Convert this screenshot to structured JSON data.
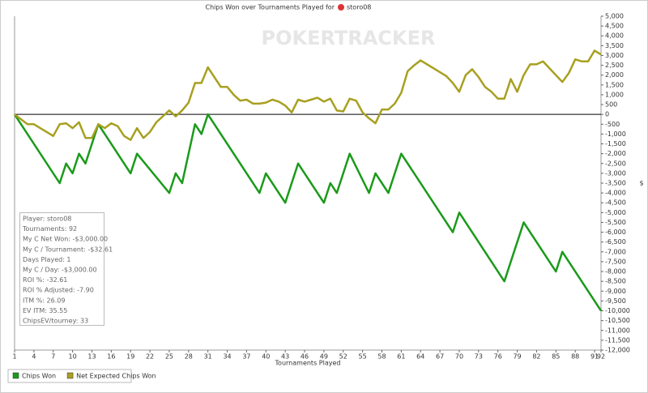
{
  "chart_data": {
    "type": "line",
    "title": "Chips Won over Tournaments Played for",
    "title_player": "storo08",
    "watermark": "POKERTRACKER",
    "x_label": "Tournaments Played",
    "y_label": "$",
    "xlim": [
      1,
      92
    ],
    "xticks": [
      1,
      4,
      7,
      10,
      13,
      16,
      19,
      22,
      25,
      28,
      31,
      34,
      37,
      40,
      43,
      46,
      49,
      52,
      55,
      58,
      61,
      64,
      67,
      70,
      73,
      76,
      79,
      82,
      85,
      88,
      91,
      92
    ],
    "ylim": [
      -12000,
      5000
    ],
    "yticks": [
      {
        "value": 5000,
        "label": "5,000"
      },
      {
        "value": 4500,
        "label": "4,500"
      },
      {
        "value": 4000,
        "label": "4,000"
      },
      {
        "value": 3500,
        "label": "3,500"
      },
      {
        "value": 3000,
        "label": "3,000"
      },
      {
        "value": 2500,
        "label": "2,500"
      },
      {
        "value": 2000,
        "label": "2,000"
      },
      {
        "value": 1500,
        "label": "1,500"
      },
      {
        "value": 1000,
        "label": "1,000"
      },
      500,
      0,
      -500,
      {
        "value": -1000,
        "label": "-1,000"
      },
      {
        "value": -1500,
        "label": "-1,500"
      },
      {
        "value": -2000,
        "label": "-2,000"
      },
      {
        "value": -2500,
        "label": "-2,500"
      },
      {
        "value": -3000,
        "label": "-3,000"
      },
      {
        "value": -3500,
        "label": "-3,500"
      },
      {
        "value": -4000,
        "label": "-4,000"
      },
      {
        "value": -4500,
        "label": "-4,500"
      },
      {
        "value": -5000,
        "label": "-5,000"
      },
      {
        "value": -5500,
        "label": "-5,500"
      },
      {
        "value": -6000,
        "label": "-6,000"
      },
      {
        "value": -6500,
        "label": "-6,500"
      },
      {
        "value": -7000,
        "label": "-7,000"
      },
      {
        "value": -7500,
        "label": "-7,500"
      },
      {
        "value": -8000,
        "label": "-8,000"
      },
      {
        "value": -8500,
        "label": "-8,500"
      },
      {
        "value": -9000,
        "label": "-9,000"
      },
      {
        "value": -9500,
        "label": "-9,500"
      },
      {
        "value": -10000,
        "label": "-10,000"
      },
      {
        "value": -10500,
        "label": "-10,500"
      },
      {
        "value": -11000,
        "label": "-11,000"
      },
      {
        "value": -11500,
        "label": "-11,500"
      },
      {
        "value": -12000,
        "label": "-12,000"
      }
    ],
    "series": [
      {
        "name": "Chips Won",
        "color": "#1a9a1a",
        "x": [
          1,
          8,
          9,
          10,
          11,
          12,
          14,
          19,
          20,
          25,
          26,
          27,
          29,
          30,
          31,
          39,
          40,
          43,
          45,
          49,
          50,
          51,
          53,
          56,
          57,
          59,
          61,
          69,
          70,
          77,
          80,
          85,
          86,
          92
        ],
        "values": [
          0,
          -3500,
          -2500,
          -3000,
          -2000,
          -2500,
          -500,
          -3000,
          -2000,
          -4000,
          -3000,
          -3500,
          -500,
          -1000,
          0,
          -4000,
          -3000,
          -4500,
          -2500,
          -4500,
          -3500,
          -4000,
          -2000,
          -4000,
          -3000,
          -4000,
          -2000,
          -6000,
          -5000,
          -8500,
          -5500,
          -8000,
          -7000,
          -10000
        ]
      },
      {
        "name": "Net Expected Chips Won",
        "color": "#a8a020",
        "x": [
          1,
          2,
          3,
          4,
          5,
          6,
          7,
          8,
          9,
          10,
          11,
          12,
          13,
          14,
          15,
          16,
          17,
          18,
          19,
          20,
          21,
          22,
          23,
          24,
          25,
          26,
          27,
          28,
          29,
          30,
          31,
          32,
          33,
          34,
          35,
          36,
          37,
          38,
          39,
          40,
          41,
          42,
          43,
          44,
          45,
          46,
          47,
          48,
          49,
          50,
          51,
          52,
          53,
          54,
          55,
          56,
          57,
          58,
          59,
          60,
          61,
          62,
          63,
          64,
          65,
          66,
          67,
          68,
          69,
          70,
          71,
          72,
          73,
          74,
          75,
          76,
          77,
          78,
          79,
          80,
          81,
          82,
          83,
          84,
          85,
          86,
          87,
          88,
          89,
          90,
          91,
          92
        ],
        "values": [
          0,
          -250,
          -500,
          -500,
          -700,
          -900,
          -1100,
          -500,
          -450,
          -700,
          -400,
          -1200,
          -1200,
          -500,
          -700,
          -450,
          -600,
          -1100,
          -1300,
          -700,
          -1200,
          -900,
          -400,
          -100,
          200,
          -100,
          200,
          600,
          1600,
          1600,
          2400,
          1900,
          1400,
          1400,
          1000,
          700,
          750,
          550,
          550,
          600,
          750,
          650,
          450,
          100,
          750,
          650,
          750,
          850,
          650,
          800,
          200,
          150,
          800,
          700,
          100,
          -200,
          -450,
          250,
          250,
          550,
          1100,
          2200,
          2500,
          2750,
          2550,
          2350,
          2150,
          1950,
          1600,
          1150,
          2000,
          2300,
          1900,
          1400,
          1150,
          800,
          800,
          1800,
          1150,
          2000,
          2550,
          2550,
          2700,
          2350,
          2000,
          1650,
          2100,
          2800,
          2700,
          2700,
          3250,
          3050
        ]
      }
    ],
    "info": [
      "Player: storo08",
      "Tournaments: 92",
      "My C Net Won: -$3,000.00",
      "My C / Tournament: -$32.61",
      "Days Played: 1",
      "My C / Day: -$3,000.00",
      "ROI %: -32.61",
      "ROI % Adjusted: -7.90",
      "ITM %: 26.09",
      "EV ITM: 35.55",
      "ChipsEV/tourney: 33"
    ]
  }
}
